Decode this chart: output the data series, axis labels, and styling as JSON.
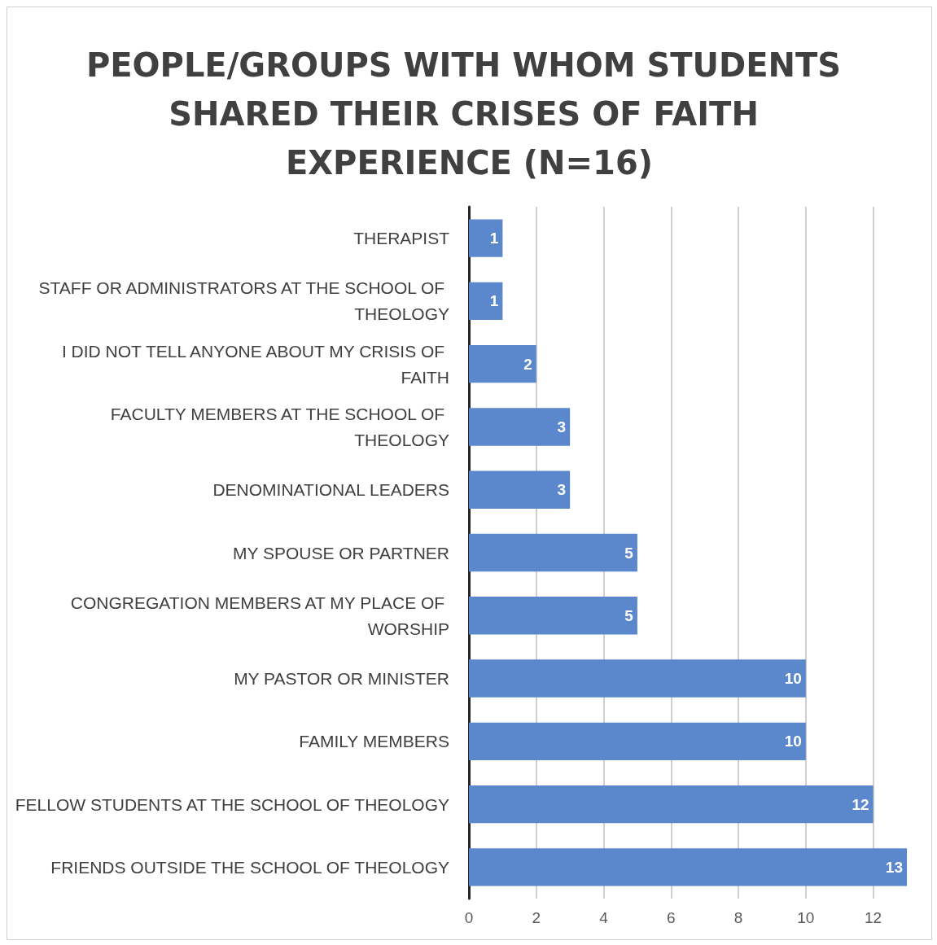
{
  "chart_data": {
    "type": "bar",
    "orientation": "horizontal",
    "title": "PEOPLE/GROUPS WITH WHOM STUDENTS SHARED THEIR CRISES OF FAITH EXPERIENCE (N=16)",
    "categories": [
      "THERAPIST",
      "STAFF OR ADMINISTRATORS AT THE SCHOOL OF THEOLOGY",
      "I DID NOT TELL ANYONE ABOUT MY CRISIS OF FAITH",
      "FACULTY MEMBERS AT THE SCHOOL OF THEOLOGY",
      "DENOMINATIONAL LEADERS",
      "MY SPOUSE OR PARTNER",
      "CONGREGATION MEMBERS AT MY PLACE OF WORSHIP",
      "MY PASTOR OR MINISTER",
      "FAMILY MEMBERS",
      "FELLOW STUDENTS AT THE SCHOOL OF THEOLOGY",
      "FRIENDS OUTSIDE THE SCHOOL OF THEOLOGY"
    ],
    "values": [
      1,
      1,
      2,
      3,
      3,
      5,
      5,
      10,
      10,
      12,
      13
    ],
    "color": "#5b87cc",
    "xlim": [
      0,
      13
    ],
    "xticks": [
      0,
      2,
      4,
      6,
      8,
      10,
      12
    ],
    "grid": "x",
    "data_labels": true
  }
}
